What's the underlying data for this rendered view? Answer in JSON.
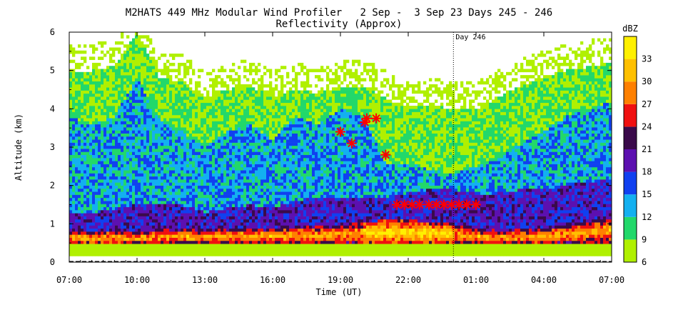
{
  "title": {
    "line1": "M2HATS 449 MHz Modular Wind Profiler   2 Sep -  3 Sep 23 Days 245 - 246",
    "line2": "Reflectivity (Approx)"
  },
  "colors": {
    "background": "#ffffff",
    "frame": "#000000",
    "marker": "#ff0000",
    "marker_band": "#ff3300"
  },
  "chart_data": {
    "type": "heatmap",
    "title": "M2HATS 449 MHz Modular Wind Profiler   2 Sep -  3 Sep 23 Days 245 - 246",
    "subtitle": "Reflectivity (Approx)",
    "xlabel": "Time (UT)",
    "ylabel": "Altitude (km)",
    "x_unit": "hours since 07:00 UT, 2 Sep",
    "x_range_hours": [
      0,
      24
    ],
    "xlim_labels": [
      "07:00",
      "07:00"
    ],
    "x_ticks": [
      {
        "hour": 0,
        "label": "07:00"
      },
      {
        "hour": 3,
        "label": "10:00"
      },
      {
        "hour": 6,
        "label": "13:00"
      },
      {
        "hour": 9,
        "label": "16:00"
      },
      {
        "hour": 12,
        "label": "19:00"
      },
      {
        "hour": 15,
        "label": "22:00"
      },
      {
        "hour": 18,
        "label": "01:00"
      },
      {
        "hour": 21,
        "label": "04:00"
      },
      {
        "hour": 24,
        "label": "07:00"
      }
    ],
    "ylim": [
      0,
      6
    ],
    "y_ticks": [
      0,
      1,
      2,
      3,
      4,
      5,
      6
    ],
    "colorbar": {
      "label": "dBZ",
      "levels": [
        6,
        9,
        12,
        15,
        18,
        21,
        24,
        27,
        30,
        33
      ],
      "tick_labels": [
        "6",
        "9",
        "12",
        "15",
        "18",
        "21",
        "24",
        "27",
        "30",
        "33"
      ],
      "colors": [
        "#b0f000",
        "#22d86a",
        "#13b0f0",
        "#1040f0",
        "#5c10b0",
        "#3a0a4a",
        "#f01010",
        "#ff8000",
        "#ffc000",
        "#fff000"
      ]
    },
    "day_marker": {
      "hour": 17,
      "label": "Day 246"
    },
    "markers": [
      {
        "time": "19:00",
        "altitude_km": 3.4
      },
      {
        "time": "19:30",
        "altitude_km": 3.1
      },
      {
        "time": "20:05",
        "altitude_km": 3.65
      },
      {
        "time": "20:10",
        "altitude_km": 3.75
      },
      {
        "time": "20:35",
        "altitude_km": 3.75
      },
      {
        "time": "21:00",
        "altitude_km": 2.8
      },
      {
        "time": "21:30",
        "altitude_km": 1.5
      },
      {
        "time": "21:50",
        "altitude_km": 1.5
      },
      {
        "time": "22:10",
        "altitude_km": 1.5
      },
      {
        "time": "22:30",
        "altitude_km": 1.5
      },
      {
        "time": "22:55",
        "altitude_km": 1.5
      },
      {
        "time": "23:15",
        "altitude_km": 1.5
      },
      {
        "time": "23:35",
        "altitude_km": 1.5
      },
      {
        "time": "23:55",
        "altitude_km": 1.5
      },
      {
        "time": "00:15",
        "altitude_km": 1.5
      },
      {
        "time": "00:35",
        "altitude_km": 1.5
      },
      {
        "time": "01:00",
        "altitude_km": 1.5
      }
    ],
    "field_profiles": [
      {
        "hour": 0,
        "top": 5.0,
        "blue_top": 3.8,
        "boundary_top": 1.3,
        "bl_high": 0.85
      },
      {
        "hour": 1,
        "top": 5.0,
        "blue_top": 3.6,
        "boundary_top": 1.3,
        "bl_high": 0.8
      },
      {
        "hour": 2,
        "top": 5.1,
        "blue_top": 3.8,
        "boundary_top": 1.4,
        "bl_high": 0.85
      },
      {
        "hour": 3,
        "top": 6.0,
        "blue_top": 4.8,
        "boundary_top": 1.5,
        "bl_high": 0.8
      },
      {
        "hour": 4,
        "top": 4.8,
        "blue_top": 3.7,
        "boundary_top": 1.5,
        "bl_high": 0.85
      },
      {
        "hour": 5,
        "top": 4.7,
        "blue_top": 3.4,
        "boundary_top": 1.5,
        "bl_high": 0.9
      },
      {
        "hour": 6,
        "top": 4.3,
        "blue_top": 3.0,
        "boundary_top": 1.3,
        "bl_high": 0.85
      },
      {
        "hour": 7,
        "top": 4.5,
        "blue_top": 3.4,
        "boundary_top": 1.4,
        "bl_high": 0.9
      },
      {
        "hour": 8,
        "top": 4.6,
        "blue_top": 3.6,
        "boundary_top": 1.5,
        "bl_high": 0.9
      },
      {
        "hour": 9,
        "top": 4.3,
        "blue_top": 3.2,
        "boundary_top": 1.4,
        "bl_high": 0.9
      },
      {
        "hour": 10,
        "top": 4.5,
        "blue_top": 3.8,
        "boundary_top": 1.6,
        "bl_high": 0.95
      },
      {
        "hour": 11,
        "top": 4.4,
        "blue_top": 3.6,
        "boundary_top": 1.7,
        "bl_high": 0.95
      },
      {
        "hour": 12,
        "top": 4.6,
        "blue_top": 4.0,
        "boundary_top": 1.7,
        "bl_high": 1.0
      },
      {
        "hour": 13,
        "top": 4.6,
        "blue_top": 3.8,
        "boundary_top": 1.7,
        "bl_high": 1.05
      },
      {
        "hour": 14,
        "top": 4.3,
        "blue_top": 2.6,
        "boundary_top": 1.7,
        "bl_high": 1.1
      },
      {
        "hour": 15,
        "top": 4.0,
        "blue_top": 2.6,
        "boundary_top": 1.8,
        "bl_high": 1.1
      },
      {
        "hour": 16,
        "top": 4.1,
        "blue_top": 2.4,
        "boundary_top": 1.9,
        "bl_high": 1.05
      },
      {
        "hour": 17,
        "top": 4.0,
        "blue_top": 2.3,
        "boundary_top": 1.9,
        "bl_high": 1.0
      },
      {
        "hour": 18,
        "top": 4.0,
        "blue_top": 2.5,
        "boundary_top": 1.8,
        "bl_high": 0.9
      },
      {
        "hour": 19,
        "top": 4.3,
        "blue_top": 2.7,
        "boundary_top": 1.8,
        "bl_high": 0.85
      },
      {
        "hour": 20,
        "top": 4.6,
        "blue_top": 3.1,
        "boundary_top": 1.9,
        "bl_high": 0.85
      },
      {
        "hour": 21,
        "top": 4.8,
        "blue_top": 3.4,
        "boundary_top": 1.9,
        "bl_high": 0.9
      },
      {
        "hour": 22,
        "top": 5.0,
        "blue_top": 3.8,
        "boundary_top": 2.0,
        "bl_high": 1.0
      },
      {
        "hour": 23,
        "top": 5.1,
        "blue_top": 4.0,
        "boundary_top": 2.1,
        "bl_high": 1.1
      },
      {
        "hour": 24,
        "top": 5.2,
        "blue_top": 4.2,
        "boundary_top": 2.2,
        "bl_high": 1.2
      }
    ],
    "grid": false,
    "legend": "colorbar-right"
  }
}
